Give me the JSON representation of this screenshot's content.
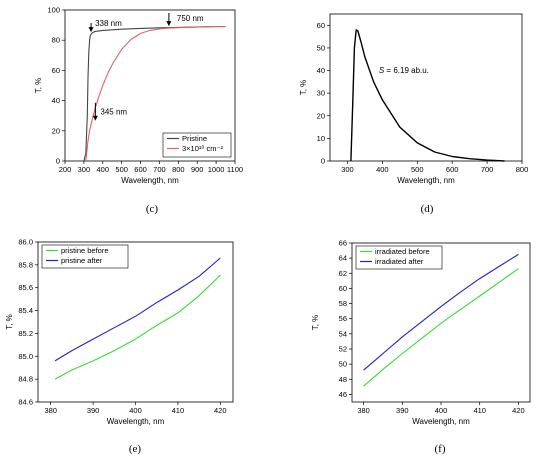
{
  "chart_data": [
    {
      "type": "line",
      "caption": "(c)",
      "xlabel": "Wavelength, nm",
      "ylabel": "T, %",
      "xlim": [
        200,
        1100
      ],
      "ylim": [
        0,
        100
      ],
      "xticks": [
        200,
        300,
        400,
        500,
        600,
        700,
        800,
        900,
        1000,
        1100
      ],
      "yticks": [
        0,
        20,
        40,
        60,
        80,
        100
      ],
      "legend_position": "bottom-right",
      "series": [
        {
          "name": "Pristine",
          "color": "#444444",
          "x": [
            300,
            310,
            318,
            322,
            326,
            330,
            334,
            338,
            345,
            360,
            400,
            500,
            600,
            700,
            800,
            900,
            1000,
            1050
          ],
          "y": [
            0,
            5,
            30,
            55,
            72,
            80,
            83,
            84,
            85,
            85.8,
            86.5,
            87.3,
            87.8,
            88.2,
            88.5,
            88.8,
            89,
            89
          ]
        },
        {
          "name": "3×10¹⁰ cm⁻²",
          "color": "#d9646e",
          "x": [
            310,
            315,
            320,
            330,
            345,
            360,
            380,
            400,
            430,
            460,
            500,
            550,
            600,
            650,
            700,
            750,
            800,
            900,
            1000,
            1050
          ],
          "y": [
            0,
            5,
            12,
            20,
            28,
            35,
            43,
            50,
            59,
            66,
            74,
            80.5,
            84.5,
            86.5,
            87.5,
            88,
            88.3,
            88.7,
            89,
            89
          ]
        }
      ],
      "annotations": [
        {
          "text": "338 nm",
          "x": 338,
          "y": 84
        },
        {
          "text": "345 nm",
          "x": 345,
          "y": 28
        },
        {
          "text": "750 nm",
          "x": 750,
          "y": 88
        }
      ]
    },
    {
      "type": "line",
      "caption": "(d)",
      "xlabel": "Wavelength, nm",
      "ylabel": "T, %",
      "xlim": [
        250,
        800
      ],
      "ylim": [
        0,
        65
      ],
      "xticks": [
        300,
        400,
        500,
        600,
        700,
        800
      ],
      "yticks": [
        0,
        10,
        20,
        30,
        40,
        50,
        60
      ],
      "series": [
        {
          "name": "",
          "color": "#000000",
          "x": [
            310,
            315,
            320,
            325,
            330,
            340,
            350,
            375,
            400,
            450,
            500,
            550,
            600,
            650,
            700,
            750
          ],
          "y": [
            0,
            25,
            50,
            58,
            57.5,
            52,
            46,
            35,
            27,
            15,
            8,
            4,
            2,
            1,
            0.4,
            0
          ]
        }
      ],
      "annotations": [
        {
          "text": "S = 6.19 ab.u.",
          "x": 390,
          "y": 39
        }
      ]
    },
    {
      "type": "line",
      "caption": "(e)",
      "xlabel": "Wavelength, nm",
      "ylabel": "T, %",
      "xlim": [
        377,
        423
      ],
      "ylim": [
        84.6,
        86.0
      ],
      "xticks": [
        380,
        390,
        400,
        410,
        420
      ],
      "yticks": [
        84.6,
        84.8,
        85.0,
        85.2,
        85.4,
        85.6,
        85.8,
        86.0
      ],
      "legend_position": "top-left",
      "series": [
        {
          "name": "pristine before",
          "color": "#33dd33",
          "x": [
            381,
            385,
            390,
            395,
            400,
            405,
            410,
            415,
            420
          ],
          "y": [
            84.8,
            84.88,
            84.96,
            85.05,
            85.15,
            85.27,
            85.38,
            85.53,
            85.71
          ]
        },
        {
          "name": "pristine after",
          "color": "#2222cc",
          "x": [
            381,
            385,
            390,
            395,
            400,
            405,
            410,
            415,
            420
          ],
          "y": [
            84.96,
            85.05,
            85.15,
            85.25,
            85.35,
            85.47,
            85.58,
            85.7,
            85.86
          ]
        }
      ]
    },
    {
      "type": "line",
      "caption": "(f)",
      "xlabel": "Wavelength, nm",
      "ylabel": "T, %",
      "xlim": [
        377,
        423
      ],
      "ylim": [
        45,
        66
      ],
      "xticks": [
        380,
        390,
        400,
        410,
        420
      ],
      "yticks": [
        46,
        48,
        50,
        52,
        54,
        56,
        58,
        60,
        62,
        64,
        66
      ],
      "legend_position": "top-left",
      "series": [
        {
          "name": "irradiated before",
          "color": "#33dd33",
          "x": [
            380,
            385,
            390,
            395,
            400,
            405,
            410,
            415,
            420
          ],
          "y": [
            47.1,
            49.3,
            51.4,
            53.4,
            55.4,
            57.2,
            59.0,
            60.8,
            62.6
          ]
        },
        {
          "name": "irradiated after",
          "color": "#2222cc",
          "x": [
            380,
            385,
            390,
            395,
            400,
            405,
            410,
            415,
            420
          ],
          "y": [
            49.2,
            51.4,
            53.6,
            55.6,
            57.6,
            59.5,
            61.3,
            62.9,
            64.5
          ]
        }
      ]
    }
  ]
}
